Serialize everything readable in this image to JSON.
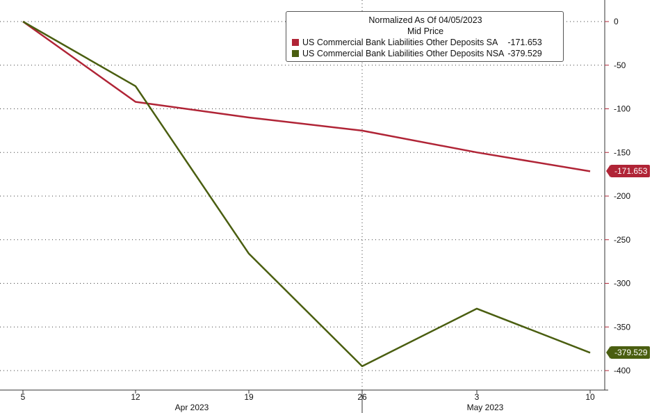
{
  "chart_data": {
    "type": "line",
    "title": "Normalized As Of 04/05/2023",
    "subtitle": "Mid Price",
    "x": [
      "2023-04-05",
      "2023-04-12",
      "2023-04-19",
      "2023-04-26",
      "2023-05-03",
      "2023-05-10"
    ],
    "x_tick_labels": [
      "5",
      "12",
      "19",
      "26",
      "3",
      "10"
    ],
    "x_month_labels": [
      "Apr 2023",
      "May 2023"
    ],
    "y_tick_labels": [
      "0",
      "-50",
      "-100",
      "-150",
      "-200",
      "-250",
      "-300",
      "-350",
      "-400"
    ],
    "ylim": [
      -405,
      20
    ],
    "y_ticks": [
      0,
      -50,
      -100,
      -150,
      -200,
      -250,
      -300,
      -350,
      -400
    ],
    "grid": true,
    "legend_position": "top-right",
    "series": [
      {
        "name": "US Commercial Bank Liabilities Other Deposits SA",
        "legend_value": "-171.653",
        "last_label": "-171.653",
        "color": "#b02436",
        "values": [
          0,
          -92,
          -110,
          -125,
          -150,
          -171.653
        ]
      },
      {
        "name": "US Commercial Bank Liabilities Other Deposits NSA",
        "legend_value": "-379.529",
        "last_label": "-379.529",
        "color": "#4a5e10",
        "values": [
          0,
          -74,
          -266,
          -395,
          -329,
          -379.529
        ]
      }
    ]
  }
}
